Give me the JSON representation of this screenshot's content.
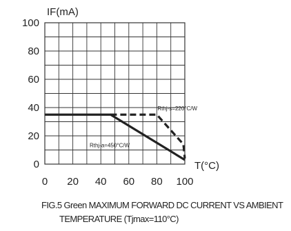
{
  "chart_data": {
    "type": "line",
    "ylabel": "IF(mA)",
    "xlabel": "T(°C)",
    "xlim": [
      0,
      100
    ],
    "ylim": [
      0,
      100
    ],
    "x_ticks": [
      "0",
      "20",
      "40",
      "60",
      "80",
      "100"
    ],
    "y_ticks": [
      "0",
      "20",
      "40",
      "60",
      "80",
      "100"
    ],
    "grid": true,
    "x_grid_step": 10,
    "y_grid_step": 10,
    "series": [
      {
        "name": "Rthj-a=450°C/W",
        "style": "solid",
        "x": [
          0,
          47,
          100
        ],
        "y": [
          35,
          35,
          3
        ]
      },
      {
        "name": "Rthj-s=220°C/W",
        "style": "dashed",
        "x": [
          47,
          80,
          99,
          100
        ],
        "y": [
          35,
          35,
          14,
          4
        ]
      }
    ],
    "annotations": [
      {
        "text": "Rthj-s=220°C/W",
        "x": 80.5,
        "y": 38
      },
      {
        "text": "Rthj-a=450°C/W",
        "x": 32,
        "y": 12
      }
    ],
    "caption_lines": [
      "FIG.5 Green MAXIMUM FORWARD DC CURRENT VS AMBIENT",
      "TEMPERATURE (Tjmax=110°C)"
    ]
  },
  "colors": {
    "line": "#222222",
    "grid": "#333333"
  }
}
